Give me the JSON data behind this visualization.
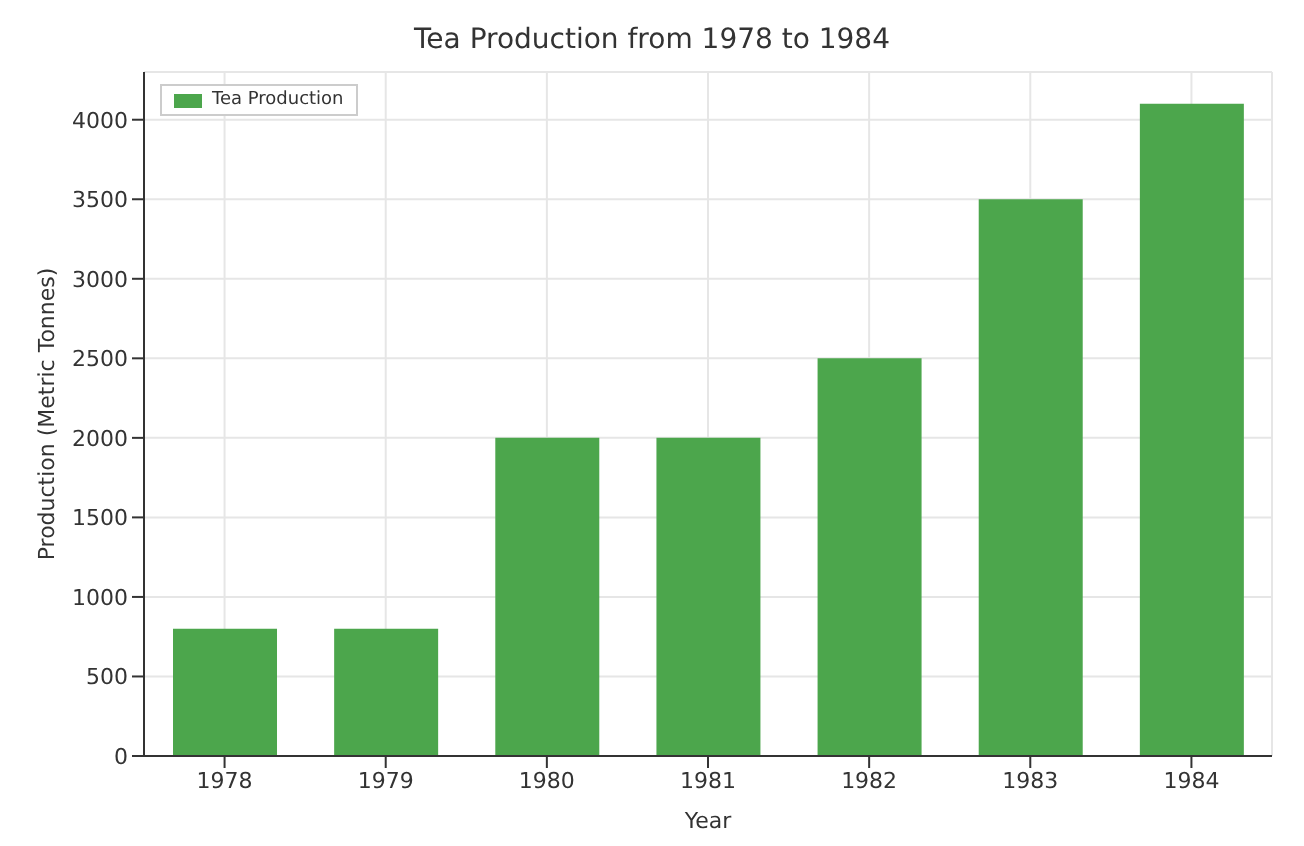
{
  "chart_data": {
    "type": "bar",
    "title": "Tea Production from 1978 to 1984",
    "xlabel": "Year",
    "ylabel": "Production (Metric Tonnes)",
    "categories": [
      "1978",
      "1979",
      "1980",
      "1981",
      "1982",
      "1983",
      "1984"
    ],
    "series": [
      {
        "name": "Tea Production",
        "color": "#4ca64c",
        "values": [
          800,
          800,
          2000,
          2000,
          2500,
          3500,
          4100
        ]
      }
    ],
    "ylim": [
      0,
      4300
    ],
    "yticks": [
      0,
      500,
      1000,
      1500,
      2000,
      2500,
      3000,
      3500,
      4000
    ],
    "grid": true,
    "legend": "top left"
  }
}
